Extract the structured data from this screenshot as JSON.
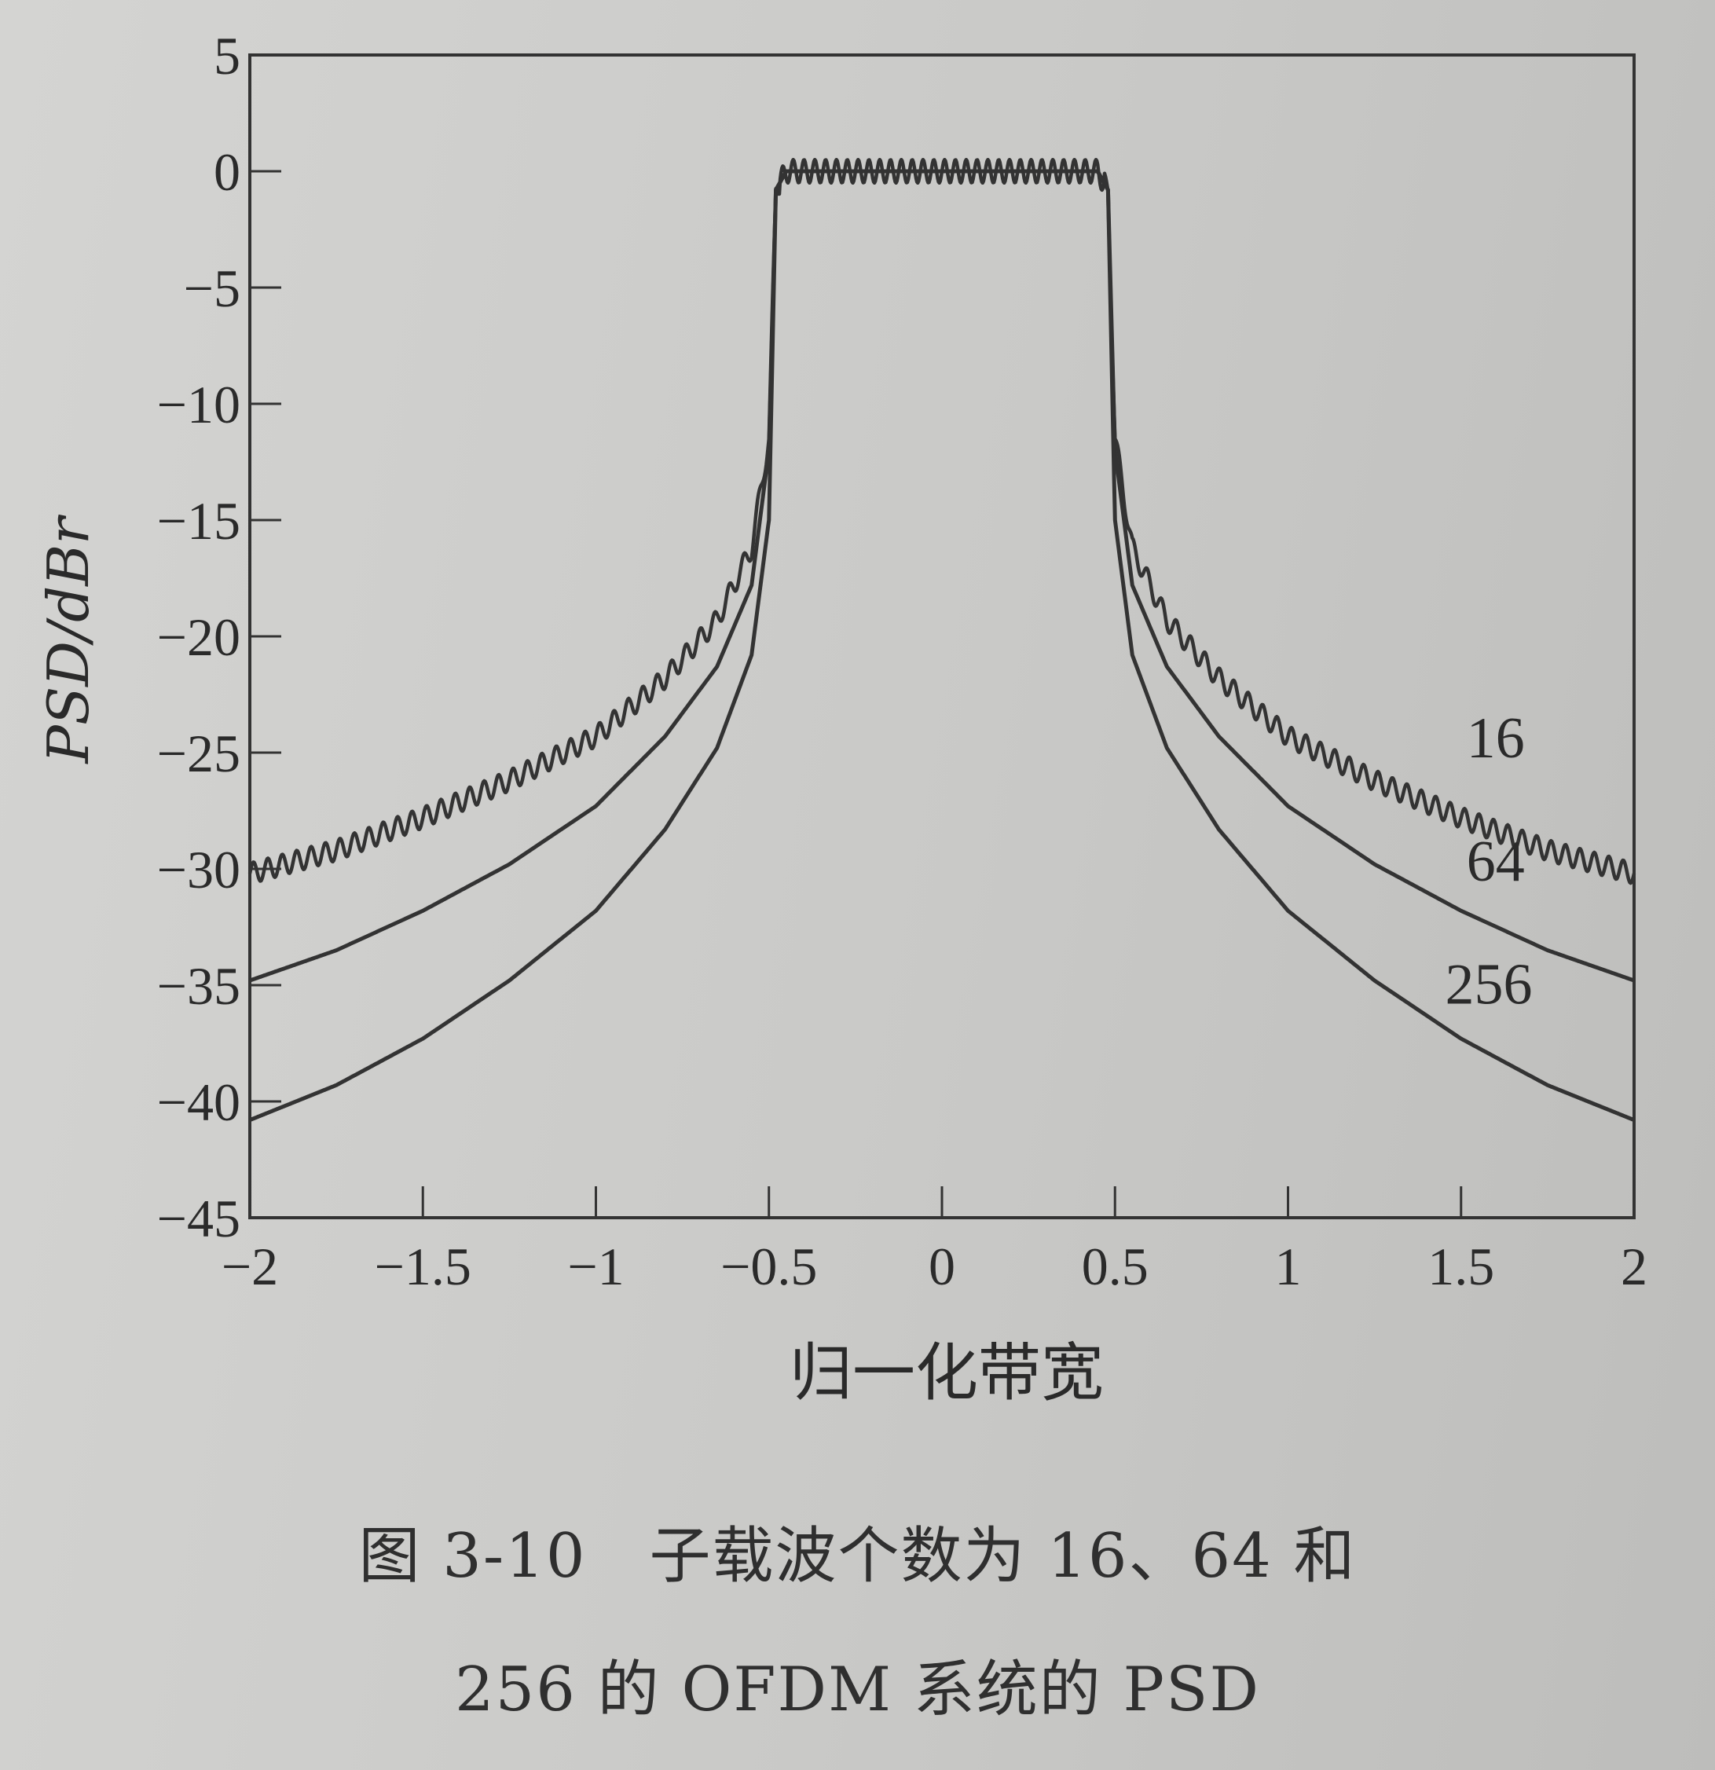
{
  "chart_data": {
    "type": "line",
    "title": "",
    "xlabel": "归一化带宽",
    "ylabel": "PSD/dBr",
    "xlim": [
      -2,
      2
    ],
    "ylim": [
      -45,
      5
    ],
    "x_ticks": [
      "-2",
      "-1.5",
      "-1",
      "-0.5",
      "0",
      "0.5",
      "1",
      "1.5",
      "2"
    ],
    "y_ticks": [
      "5",
      "0",
      "-5",
      "-10",
      "-15",
      "-20",
      "-25",
      "-30",
      "-35",
      "-40",
      "-45"
    ],
    "grid": false,
    "series": [
      {
        "name": "16",
        "x": [
          -2.0,
          -1.75,
          -1.5,
          -1.25,
          -1.0,
          -0.8,
          -0.65,
          -0.55,
          -0.5,
          -0.48,
          -0.45,
          0.0,
          0.45,
          0.48,
          0.5,
          0.55,
          0.65,
          0.8,
          1.0,
          1.25,
          1.5,
          1.75,
          2.0
        ],
        "y": [
          -30.2,
          -29.2,
          -27.8,
          -26.2,
          -24.3,
          -21.8,
          -19.3,
          -16.2,
          -11.5,
          -0.8,
          0.0,
          0.0,
          0.0,
          -0.8,
          -11.5,
          -16.2,
          -19.3,
          -21.8,
          -24.3,
          -26.2,
          -27.8,
          -29.2,
          -30.2
        ],
        "ripple_db": 0.5
      },
      {
        "name": "64",
        "x": [
          -2.0,
          -1.75,
          -1.5,
          -1.25,
          -1.0,
          -0.8,
          -0.65,
          -0.55,
          -0.5,
          -0.48,
          -0.45,
          0.0,
          0.45,
          0.48,
          0.5,
          0.55,
          0.65,
          0.8,
          1.0,
          1.25,
          1.5,
          1.75,
          2.0
        ],
        "y": [
          -34.8,
          -33.5,
          -31.8,
          -29.8,
          -27.3,
          -24.3,
          -21.3,
          -17.8,
          -12.0,
          -0.8,
          0.0,
          0.0,
          0.0,
          -0.8,
          -12.0,
          -17.8,
          -21.3,
          -24.3,
          -27.3,
          -29.8,
          -31.8,
          -33.5,
          -34.8
        ],
        "ripple_db": 0
      },
      {
        "name": "256",
        "x": [
          -2.0,
          -1.75,
          -1.5,
          -1.25,
          -1.0,
          -0.8,
          -0.65,
          -0.55,
          -0.5,
          -0.48,
          -0.45,
          0.0,
          0.45,
          0.48,
          0.5,
          0.55,
          0.65,
          0.8,
          1.0,
          1.25,
          1.5,
          1.75,
          2.0
        ],
        "y": [
          -40.8,
          -39.3,
          -37.3,
          -34.8,
          -31.8,
          -28.3,
          -24.8,
          -20.8,
          -15.0,
          -0.8,
          0.0,
          0.0,
          0.0,
          -0.8,
          -15.0,
          -20.8,
          -24.8,
          -28.3,
          -31.8,
          -34.8,
          -37.3,
          -39.3,
          -40.8
        ],
        "ripple_db": 0
      }
    ],
    "colors": {
      "line": "#333333",
      "axis": "#333333",
      "paper": "#d2d2d0"
    }
  },
  "caption": {
    "line1": "图 3-10　子载波个数为 16、64 和",
    "line2": "256 的 OFDM 系统的 PSD"
  }
}
